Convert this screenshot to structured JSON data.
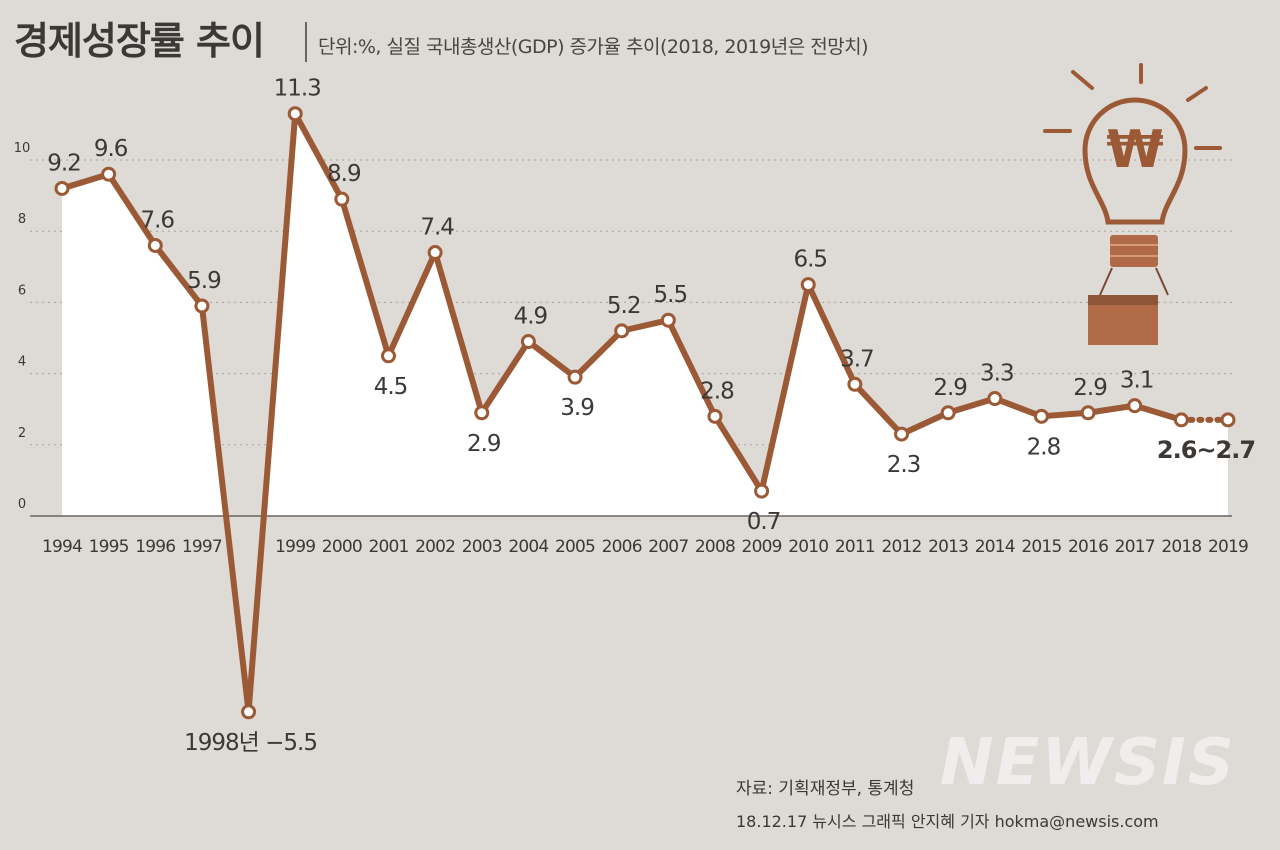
{
  "header": {
    "title": "경제성장률 추이",
    "subtitle": "단위:%, 실질 국내총생산(GDP) 증가율 추이(2018, 2019년은 전망치)"
  },
  "footer": {
    "source": "자료: 기획재정부, 통계청",
    "credit": "18.12.17 뉴시스 그래픽 안지혜 기자 hokma@newsis.com",
    "watermark": "NEWSIS"
  },
  "icon": {
    "name": "lightbulb-won-icon",
    "glyph": "₩"
  },
  "colors": {
    "line": "#9b5a35",
    "area": "#ffffff",
    "background": "#dedad6",
    "text": "#3c3835"
  },
  "chart_data": {
    "type": "line",
    "x": [
      "1994",
      "1995",
      "1996",
      "1997",
      "1998",
      "1999",
      "2000",
      "2001",
      "2002",
      "2003",
      "2004",
      "2005",
      "2006",
      "2007",
      "2008",
      "2009",
      "2010",
      "2011",
      "2012",
      "2013",
      "2014",
      "2015",
      "2016",
      "2017",
      "2018",
      "2019"
    ],
    "values": [
      9.2,
      9.6,
      7.6,
      5.9,
      -5.5,
      11.3,
      8.9,
      4.5,
      7.4,
      2.9,
      4.9,
      3.9,
      5.2,
      5.5,
      2.8,
      0.7,
      6.5,
      3.7,
      2.3,
      2.9,
      3.3,
      2.8,
      2.9,
      3.1,
      2.7,
      2.7
    ],
    "data_labels": [
      "9.2",
      "9.6",
      "7.6",
      "5.9",
      "1998년 −5.5",
      "11.3",
      "8.9",
      "4.5",
      "7.4",
      "2.9",
      "4.9",
      "3.9",
      "5.2",
      "5.5",
      "2.8",
      "0.7",
      "6.5",
      "3.7",
      "2.3",
      "2.9",
      "3.3",
      "2.8",
      "2.9",
      "3.1",
      "",
      "2.6~2.7"
    ],
    "x_tick_labels": [
      "1994",
      "1995",
      "1996",
      "1997",
      "",
      "1999",
      "2000",
      "2001",
      "2002",
      "2003",
      "2004",
      "2005",
      "2006",
      "2007",
      "2008",
      "2009",
      "2010",
      "2011",
      "2012",
      "2013",
      "2014",
      "2015",
      "2016",
      "2017",
      "2018",
      "2019"
    ],
    "label_position": [
      "above",
      "above",
      "above",
      "above",
      "below",
      "above",
      "above",
      "below",
      "above",
      "below",
      "above",
      "below",
      "above",
      "above",
      "above",
      "below",
      "above",
      "above",
      "below",
      "above",
      "above",
      "below",
      "above",
      "above",
      "none",
      "below"
    ],
    "forecast_from_index": 24,
    "yticks": [
      0,
      2,
      4,
      6,
      8,
      10
    ],
    "ylim": [
      -5.5,
      11.3
    ],
    "grid": true,
    "xlabel": "",
    "ylabel": ""
  }
}
